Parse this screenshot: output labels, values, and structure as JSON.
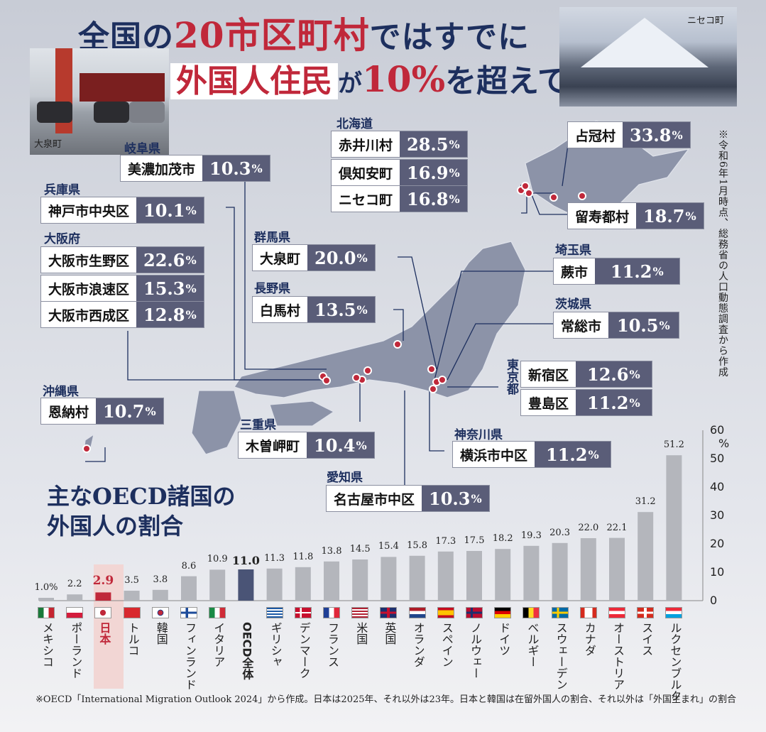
{
  "header": {
    "line1_pre": "全国の",
    "line1_red": "20市区町村",
    "line1_post": "ではすでに",
    "line2_hl": "外国人住民",
    "line2_mid": "が",
    "line2_red": "10%",
    "line2_post": "を超えている"
  },
  "photos": {
    "left_caption": "大泉町",
    "right_caption": "ニセコ町"
  },
  "note": "※令和6年1月時点、総務省の人口動態調査から作成",
  "map_labels": [
    {
      "pref": "北海道",
      "name": "赤井川村",
      "value": "28.5"
    },
    {
      "pref": "",
      "name": "倶知安町",
      "value": "16.9"
    },
    {
      "pref": "",
      "name": "ニセコ町",
      "value": "16.8"
    },
    {
      "pref": "",
      "name": "占冠村",
      "value": "33.8"
    },
    {
      "pref": "",
      "name": "留寿都村",
      "value": "18.7"
    },
    {
      "pref": "岐阜県",
      "name": "美濃加茂市",
      "value": "10.3"
    },
    {
      "pref": "兵庫県",
      "name": "神戸市中央区",
      "value": "10.1"
    },
    {
      "pref": "大阪府",
      "name": "大阪市生野区",
      "value": "22.6"
    },
    {
      "pref": "",
      "name": "大阪市浪速区",
      "value": "15.3"
    },
    {
      "pref": "",
      "name": "大阪市西成区",
      "value": "12.8"
    },
    {
      "pref": "群馬県",
      "name": "大泉町",
      "value": "20.0"
    },
    {
      "pref": "長野県",
      "name": "白馬村",
      "value": "13.5"
    },
    {
      "pref": "埼玉県",
      "name": "蕨市",
      "value": "11.2"
    },
    {
      "pref": "茨城県",
      "name": "常総市",
      "value": "10.5"
    },
    {
      "pref": "",
      "name": "新宿区",
      "value": "12.6"
    },
    {
      "pref": "",
      "name": "豊島区",
      "value": "11.2"
    },
    {
      "pref": "沖縄県",
      "name": "恩納村",
      "value": "10.7"
    },
    {
      "pref": "三重県",
      "name": "木曽岬町",
      "value": "10.4"
    },
    {
      "pref": "神奈川県",
      "name": "横浜市中区",
      "value": "11.2"
    },
    {
      "pref": "愛知県",
      "name": "名古屋市中区",
      "value": "10.3"
    }
  ],
  "tokyo_label": "東京都",
  "percent_sign": "%",
  "oecd_title": [
    "主なOECD諸国の",
    "外国人の割合"
  ],
  "chart_data": {
    "type": "bar",
    "title": "主なOECD諸国の外国人の割合",
    "ylabel": "%",
    "ylim": [
      0,
      60
    ],
    "yticks": [
      0,
      10,
      20,
      30,
      40,
      50,
      60
    ],
    "categories": [
      "メキシコ",
      "ポーランド",
      "日本",
      "トルコ",
      "韓国",
      "フィンランド",
      "イタリア",
      "OECD全体",
      "ギリシャ",
      "デンマーク",
      "フランス",
      "米国",
      "英国",
      "オランダ",
      "スペイン",
      "ノルウェー",
      "ドイツ",
      "ベルギー",
      "スウェーデン",
      "カナダ",
      "オーストリア",
      "スイス",
      "ルクセンブルク"
    ],
    "value_labels": [
      "1.0%",
      "2.2",
      "2.9",
      "3.5",
      "3.8",
      "8.6",
      "10.9",
      "11.0",
      "11.3",
      "11.8",
      "13.8",
      "14.5",
      "15.4",
      "15.8",
      "17.3",
      "17.5",
      "18.2",
      "19.3",
      "20.3",
      "22.0",
      "22.1",
      "31.2",
      "51.2"
    ],
    "values": [
      1.0,
      2.2,
      2.9,
      3.5,
      3.8,
      8.6,
      10.9,
      11.0,
      11.3,
      11.8,
      13.8,
      14.5,
      15.4,
      15.8,
      17.3,
      17.5,
      18.2,
      19.3,
      20.3,
      22.0,
      22.1,
      31.2,
      51.2
    ],
    "highlight": {
      "日本": "#c0283a",
      "OECD全体": "#4a5476"
    },
    "bar_color": "#b4b6bc"
  },
  "footer": "※OECD「International Migration Outlook 2024」から作成。日本は2025年、それ以外は23年。日本と韓国は在留外国人の割合、それ以外は「外国生まれ」の割合"
}
